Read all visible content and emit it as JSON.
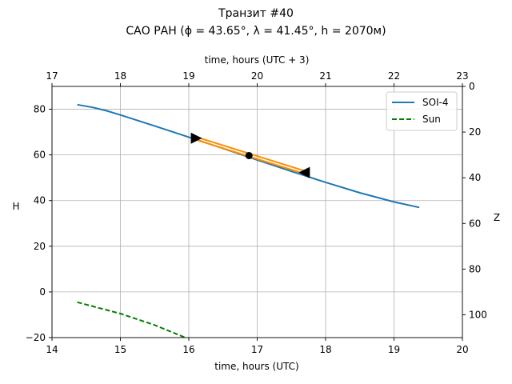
{
  "chart_data": {
    "type": "line",
    "title_line1": "Транзит #40",
    "title_line2": "САО РАН (ϕ = 43.65°, λ = 41.45°, h = 2070м)",
    "xlabel": "time, hours (UTC)",
    "xlabel_top": "time, hours (UTC + 3)",
    "ylabel": "H",
    "ylabel_right": "Z",
    "xlim": [
      14,
      20
    ],
    "ylim": [
      -20,
      90
    ],
    "xlim_top": [
      17,
      23
    ],
    "ylim_right": [
      110,
      0
    ],
    "xticks": [
      "14",
      "15",
      "16",
      "17",
      "18",
      "19",
      "20"
    ],
    "xticks_top": [
      "17",
      "18",
      "19",
      "20",
      "21",
      "22",
      "23"
    ],
    "yticks": [
      "−20",
      "0",
      "20",
      "40",
      "60",
      "80"
    ],
    "yticks_right": [
      "0",
      "20",
      "40",
      "60",
      "80",
      "100"
    ],
    "grid": true,
    "legend_position": "top-right",
    "series": [
      {
        "name": "SOI-4",
        "color": "#1f77b4",
        "style": "solid",
        "x": [
          14.37,
          14.6,
          14.8,
          15.0,
          15.5,
          16.0,
          16.5,
          17.0,
          17.5,
          18.0,
          18.5,
          19.0,
          19.37
        ],
        "y": [
          82.0,
          80.8,
          79.3,
          77.5,
          72.7,
          67.8,
          62.8,
          57.8,
          52.8,
          48.0,
          43.4,
          39.4,
          37.0
        ]
      },
      {
        "name": "Sun",
        "color": "#008000",
        "style": "dashed",
        "x": [
          14.37,
          15.0,
          15.5,
          15.95
        ],
        "y": [
          -4.5,
          -9.5,
          -14.5,
          -20.0
        ]
      }
    ],
    "transit": {
      "color": "#ff8c00",
      "x": [
        16.1,
        17.7
      ],
      "y": [
        67.3,
        52.3
      ],
      "start": {
        "x": 16.1,
        "y": 67.3,
        "marker": "right-triangle"
      },
      "mid": {
        "x": 16.88,
        "y": 59.7,
        "marker": "circle"
      },
      "end": {
        "x": 17.7,
        "y": 52.3,
        "marker": "left-triangle"
      }
    }
  }
}
